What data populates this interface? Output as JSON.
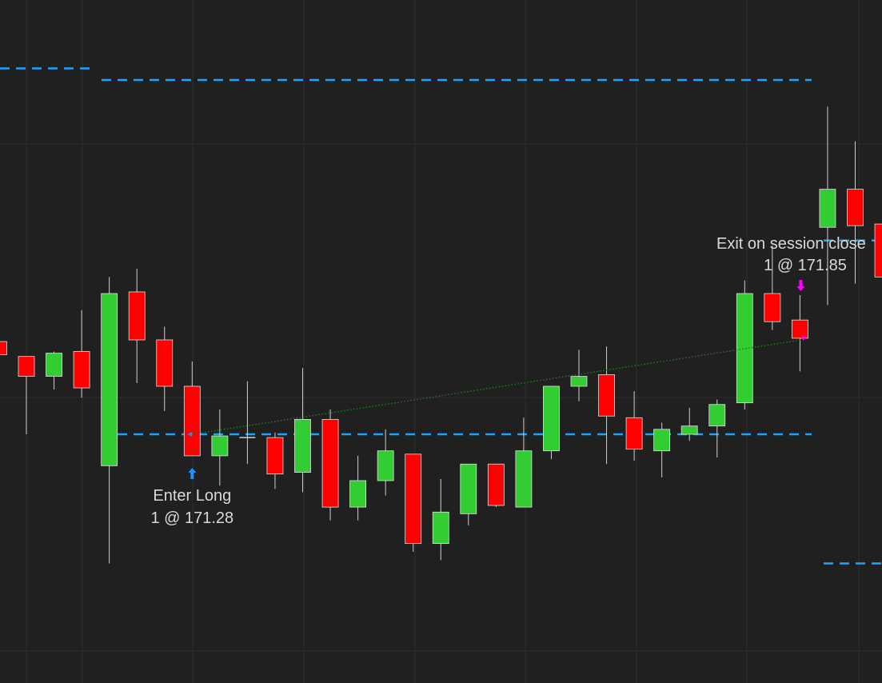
{
  "chart_data": {
    "type": "candlestick",
    "up_color": "#32cd32",
    "down_color": "#ff0000",
    "level_color": "#1aa3ff",
    "trade_line_color": "#1f7a1f",
    "open": [
      171.84,
      171.75,
      171.63,
      171.78,
      171.09,
      172.14,
      171.85,
      171.57,
      171.15,
      171.26,
      171.26,
      171.05,
      171.37,
      170.84,
      171.0,
      171.16,
      170.62,
      170.8,
      171.1,
      170.84,
      171.18,
      171.57,
      171.64,
      171.38,
      171.18,
      171.28,
      171.33,
      171.47,
      172.13,
      171.97,
      172.53,
      172.76,
      172.55
    ],
    "high": [
      171.85,
      171.75,
      171.78,
      172.03,
      172.23,
      172.28,
      171.93,
      171.72,
      171.43,
      171.6,
      171.29,
      171.68,
      171.43,
      171.15,
      171.31,
      171.16,
      171.01,
      171.1,
      171.1,
      171.38,
      171.57,
      171.79,
      171.81,
      171.54,
      171.35,
      171.44,
      171.49,
      172.21,
      172.42,
      172.12,
      173.26,
      173.05,
      172.55
    ],
    "low": [
      171.75,
      171.28,
      171.55,
      171.5,
      170.5,
      171.59,
      171.42,
      171.15,
      170.97,
      171.1,
      170.95,
      170.93,
      170.76,
      170.76,
      170.91,
      170.57,
      170.52,
      170.73,
      170.84,
      170.84,
      171.13,
      171.48,
      171.1,
      171.12,
      171.02,
      171.24,
      171.14,
      171.43,
      171.91,
      171.66,
      172.06,
      172.19,
      172.23
    ],
    "close": [
      171.76,
      171.63,
      171.77,
      171.56,
      172.13,
      171.85,
      171.57,
      171.15,
      171.27,
      171.26,
      171.04,
      171.37,
      170.84,
      171.0,
      171.18,
      170.62,
      170.81,
      171.1,
      170.85,
      171.18,
      171.57,
      171.63,
      171.39,
      171.19,
      171.31,
      171.33,
      171.46,
      172.13,
      171.96,
      171.86,
      172.76,
      172.54,
      172.23
    ],
    "levels": [
      173.49,
      173.42,
      171.28,
      172.45,
      170.5
    ],
    "entry": {
      "label": "Enter Long",
      "detail": "1 @ 171.28",
      "price": 171.28,
      "color": "#1e90ff"
    },
    "exit": {
      "label": "Exit on session close",
      "detail": "1 @ 171.85",
      "price": 171.85,
      "color": "#ff00ff"
    }
  }
}
